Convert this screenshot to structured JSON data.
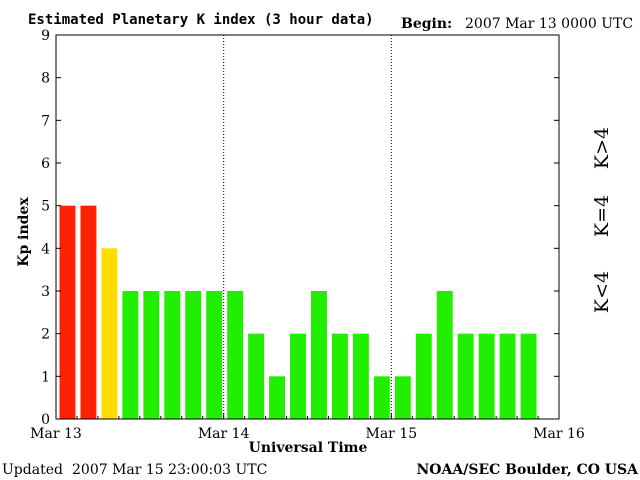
{
  "header": {
    "title": "Estimated Planetary K index (3 hour data)",
    "begin_label": "Begin:",
    "begin_value": "2007 Mar 13 0000 UTC"
  },
  "footer": {
    "updated_label": "Updated",
    "updated_value": "2007 Mar 15 23:00:03 UTC",
    "source": "NOAA/SEC Boulder, CO USA"
  },
  "legend": {
    "high": "K>4",
    "mid": "K=4",
    "low": "K<4"
  },
  "colors": {
    "high": "#ff2200",
    "mid": "#ffdd00",
    "low": "#22ee00"
  },
  "chart_data": {
    "type": "bar",
    "title": "Estimated Planetary K index (3 hour data)",
    "xlabel": "Universal Time",
    "ylabel": "Kp index",
    "ylim": [
      0,
      9
    ],
    "yticks": [
      0,
      1,
      2,
      3,
      4,
      5,
      6,
      7,
      8,
      9
    ],
    "xlim_days": [
      0,
      3
    ],
    "xtick_labels": [
      "Mar 13",
      "Mar 14",
      "Mar 15",
      "Mar 16"
    ],
    "day_separators": [
      1,
      2
    ],
    "bars_per_day": 8,
    "values": [
      5,
      5,
      4,
      3,
      3,
      3,
      3,
      3,
      3,
      2,
      1,
      2,
      3,
      2,
      2,
      1,
      1,
      2,
      3,
      2,
      2,
      2,
      2
    ],
    "grid": false
  }
}
